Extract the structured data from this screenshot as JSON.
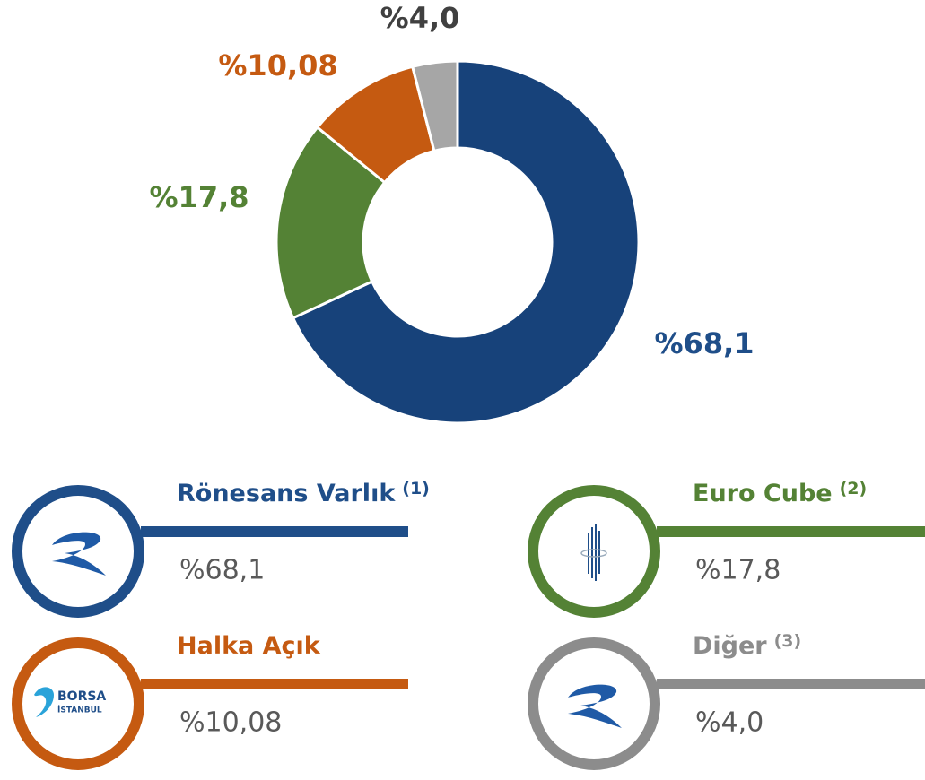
{
  "chart_data": {
    "type": "pie",
    "donut": true,
    "categories": [
      "Rönesans Varlık",
      "Euro Cube",
      "Halka Açık",
      "Diğer"
    ],
    "notes": [
      "(1)",
      "(2)",
      null,
      "(3)"
    ],
    "values": [
      68.1,
      17.8,
      10.08,
      4.0
    ],
    "value_labels": [
      "%68,1",
      "%17,8",
      "%10,08",
      "%4,0"
    ],
    "colors": [
      "#17427a",
      "#548235",
      "#c55a11",
      "#a6a6a6"
    ],
    "legend_colors": [
      "#1f4e89",
      "#548235",
      "#c55a11",
      "#8c8c8c"
    ],
    "label_colors": [
      "#1f4e89",
      "#548235",
      "#c55a11",
      "#404040"
    ],
    "logo_text": [
      "BORSA",
      "İSTANBUL"
    ]
  }
}
